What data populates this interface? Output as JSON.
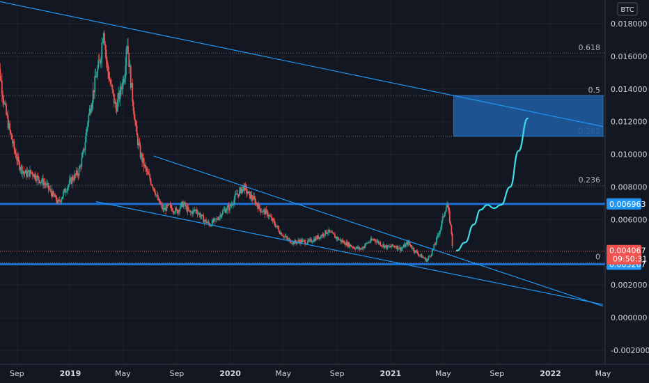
{
  "chart_data": {
    "type": "candlestick",
    "currency": "BTC",
    "y_axis": {
      "range": [
        -0.0025,
        0.0195
      ],
      "ticks": [
        "0.018000",
        "0.016000",
        "0.014000",
        "0.012000",
        "0.010000",
        "0.008000",
        "0.006000",
        "0.002000",
        "0.000000",
        "-0.002000"
      ],
      "tick_values": [
        0.018,
        0.016,
        0.014,
        0.012,
        0.01,
        0.008,
        0.006,
        0.002,
        0.0,
        -0.002
      ],
      "grid": true
    },
    "x_axis": {
      "range": [
        "2018-07-15",
        "2022-05-01"
      ],
      "ticks": [
        {
          "label": "Sep",
          "date": "2018-09-01",
          "bold": false
        },
        {
          "label": "2019",
          "date": "2019-01-01",
          "bold": true
        },
        {
          "label": "May",
          "date": "2019-05-01",
          "bold": false
        },
        {
          "label": "Sep",
          "date": "2019-09-01",
          "bold": false
        },
        {
          "label": "2020",
          "date": "2020-01-01",
          "bold": true
        },
        {
          "label": "May",
          "date": "2020-05-01",
          "bold": false
        },
        {
          "label": "Sep",
          "date": "2020-09-01",
          "bold": false
        },
        {
          "label": "2021",
          "date": "2021-01-01",
          "bold": true
        },
        {
          "label": "May",
          "date": "2021-05-01",
          "bold": false
        },
        {
          "label": "Sep",
          "date": "2021-09-01",
          "bold": false
        },
        {
          "label": "2022",
          "date": "2022-01-01",
          "bold": true
        },
        {
          "label": "May",
          "date": "2022-05-01",
          "bold": false
        }
      ]
    },
    "price_path": [
      [
        "2018-07-15",
        0.0162
      ],
      [
        "2018-07-25",
        0.0148
      ],
      [
        "2018-08-05",
        0.0128
      ],
      [
        "2018-08-15",
        0.0115
      ],
      [
        "2018-08-25",
        0.0104
      ],
      [
        "2018-09-05",
        0.0094
      ],
      [
        "2018-09-20",
        0.0088
      ],
      [
        "2018-10-05",
        0.0089
      ],
      [
        "2018-10-20",
        0.0085
      ],
      [
        "2018-11-05",
        0.0082
      ],
      [
        "2018-11-20",
        0.0076
      ],
      [
        "2018-12-05",
        0.007
      ],
      [
        "2018-12-20",
        0.0078
      ],
      [
        "2019-01-05",
        0.0085
      ],
      [
        "2019-01-20",
        0.0089
      ],
      [
        "2019-02-01",
        0.0102
      ],
      [
        "2019-02-10",
        0.0121
      ],
      [
        "2019-02-20",
        0.0135
      ],
      [
        "2019-03-01",
        0.0148
      ],
      [
        "2019-03-10",
        0.0158
      ],
      [
        "2019-03-18",
        0.0178
      ],
      [
        "2019-03-25",
        0.0155
      ],
      [
        "2019-04-05",
        0.014
      ],
      [
        "2019-04-15",
        0.0128
      ],
      [
        "2019-04-25",
        0.0138
      ],
      [
        "2019-05-05",
        0.015
      ],
      [
        "2019-05-10",
        0.0172
      ],
      [
        "2019-05-20",
        0.0142
      ],
      [
        "2019-06-01",
        0.0112
      ],
      [
        "2019-06-10",
        0.01
      ],
      [
        "2019-06-20",
        0.0092
      ],
      [
        "2019-07-01",
        0.0085
      ],
      [
        "2019-07-10",
        0.008
      ],
      [
        "2019-07-20",
        0.0072
      ],
      [
        "2019-08-01",
        0.0066
      ],
      [
        "2019-08-15",
        0.0068
      ],
      [
        "2019-09-01",
        0.0065
      ],
      [
        "2019-09-15",
        0.007
      ],
      [
        "2019-10-01",
        0.0064
      ],
      [
        "2019-10-15",
        0.0066
      ],
      [
        "2019-11-01",
        0.006
      ],
      [
        "2019-11-15",
        0.0057
      ],
      [
        "2019-12-01",
        0.006
      ],
      [
        "2019-12-15",
        0.0065
      ],
      [
        "2020-01-01",
        0.0068
      ],
      [
        "2020-01-15",
        0.0075
      ],
      [
        "2020-02-01",
        0.008
      ],
      [
        "2020-02-10",
        0.0076
      ],
      [
        "2020-02-25",
        0.0072
      ],
      [
        "2020-03-10",
        0.0066
      ],
      [
        "2020-03-25",
        0.0064
      ],
      [
        "2020-04-10",
        0.0058
      ],
      [
        "2020-04-25",
        0.0052
      ],
      [
        "2020-05-10",
        0.0048
      ],
      [
        "2020-05-25",
        0.0046
      ],
      [
        "2020-06-10",
        0.0047
      ],
      [
        "2020-06-25",
        0.0046
      ],
      [
        "2020-07-10",
        0.0048
      ],
      [
        "2020-07-25",
        0.005
      ],
      [
        "2020-08-10",
        0.0053
      ],
      [
        "2020-08-25",
        0.005
      ],
      [
        "2020-09-10",
        0.0047
      ],
      [
        "2020-09-25",
        0.0045
      ],
      [
        "2020-10-10",
        0.0043
      ],
      [
        "2020-10-25",
        0.0042
      ],
      [
        "2020-11-10",
        0.0046
      ],
      [
        "2020-11-25",
        0.0048
      ],
      [
        "2020-12-10",
        0.0045
      ],
      [
        "2020-12-25",
        0.0043
      ],
      [
        "2021-01-10",
        0.0044
      ],
      [
        "2021-01-25",
        0.0042
      ],
      [
        "2021-02-10",
        0.0046
      ],
      [
        "2021-02-25",
        0.0041
      ],
      [
        "2021-03-10",
        0.0038
      ],
      [
        "2021-03-25",
        0.0035
      ],
      [
        "2021-04-05",
        0.004
      ],
      [
        "2021-04-15",
        0.0047
      ],
      [
        "2021-04-25",
        0.0055
      ],
      [
        "2021-05-05",
        0.0066
      ],
      [
        "2021-05-10",
        0.0069
      ],
      [
        "2021-05-15",
        0.0062
      ],
      [
        "2021-05-20",
        0.0052
      ],
      [
        "2021-05-23",
        0.0041
      ]
    ],
    "projection_path": [
      [
        "2021-06-01",
        0.0041
      ],
      [
        "2021-06-20",
        0.0046
      ],
      [
        "2021-07-10",
        0.0057
      ],
      [
        "2021-07-25",
        0.0066
      ],
      [
        "2021-08-10",
        0.0069
      ],
      [
        "2021-08-25",
        0.0067
      ],
      [
        "2021-09-10",
        0.0069
      ],
      [
        "2021-10-01",
        0.008
      ],
      [
        "2021-10-20",
        0.0102
      ],
      [
        "2021-11-10",
        0.0122
      ]
    ],
    "trendlines": [
      {
        "name": "upper-resistance",
        "from": [
          "2018-07-15",
          0.0194
        ],
        "to": [
          "2022-05-01",
          0.0117
        ]
      },
      {
        "name": "wedge-top",
        "from": [
          "2019-07-10",
          0.0099
        ],
        "to": [
          "2022-05-01",
          0.0007
        ]
      },
      {
        "name": "wedge-bottom",
        "from": [
          "2019-03-01",
          0.0071
        ],
        "to": [
          "2022-05-01",
          0.0008
        ]
      }
    ],
    "target_zone": {
      "from": [
        "2021-05-25",
        0.0136
      ],
      "to": [
        "2022-05-01",
        0.0111
      ]
    },
    "fib_levels": [
      {
        "label": "0.618",
        "value": 0.0162
      },
      {
        "label": "0.5",
        "value": 0.0136
      },
      {
        "label": "0.382",
        "value": 0.0111
      },
      {
        "label": "0.236",
        "value": 0.0081
      },
      {
        "label": "0",
        "value": 0.0034
      }
    ],
    "horizontal_levels": [
      {
        "value": 0.006963,
        "label": "0.006963"
      },
      {
        "value": 0.003267,
        "label": "0.003267"
      }
    ],
    "last_price": {
      "value": 0.004067,
      "label": "0.004067",
      "countdown": "09:50:31"
    }
  },
  "colors": {
    "background": "#131722",
    "grid": "#363a45",
    "up": "#26a69a",
    "down": "#ef5350",
    "trendline": "#2196f3",
    "projection": "#3fdce8",
    "level_line": "#1e6fd6",
    "zone_fill": "#1e5a9c",
    "price_tag": "#ef5350",
    "level_tag": "#2196f3"
  }
}
